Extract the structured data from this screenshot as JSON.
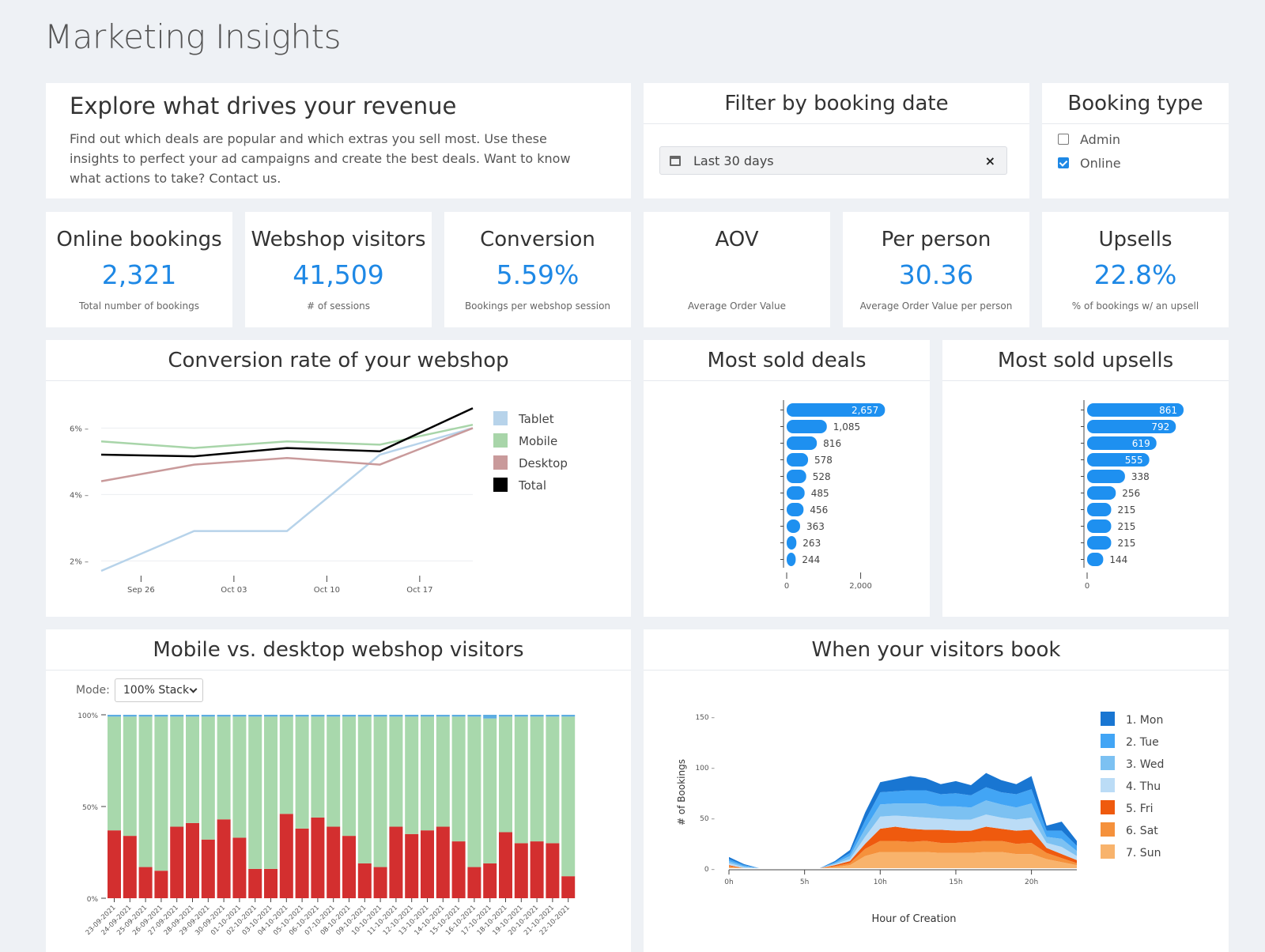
{
  "page": {
    "title": "Marketing Insights"
  },
  "intro": {
    "title": "Explore what drives your revenue",
    "text": "Find out which deals are popular and which extras you sell most. Use these insights to perfect your ad campaigns and create the best deals. Want to know what actions to take? Contact us."
  },
  "date_filter": {
    "title": "Filter by booking date",
    "value": "Last 30 days",
    "clear": "×"
  },
  "booking_type": {
    "title": "Booking type",
    "options": [
      {
        "label": "Admin",
        "checked": false
      },
      {
        "label": "Online",
        "checked": true
      }
    ]
  },
  "kpis": [
    {
      "title": "Online bookings",
      "value": "2,321",
      "sub": "Total number of bookings"
    },
    {
      "title": "Webshop visitors",
      "value": "41,509",
      "sub": "# of sessions"
    },
    {
      "title": "Conversion",
      "value": "5.59%",
      "sub": "Bookings per webshop session"
    },
    {
      "title": "AOV",
      "value": "",
      "sub": "Average Order Value"
    },
    {
      "title": "Per person",
      "value": "30.36",
      "sub": "Average Order Value per person"
    },
    {
      "title": "Upsells",
      "value": "22.8%",
      "sub": "% of bookings w/ an upsell"
    }
  ],
  "colors": {
    "accent": "#1e88e5",
    "tablet": "#b7d3ea",
    "mobile": "#a8d5a9",
    "desktop": "#c99a9b",
    "total": "#000000",
    "bar": "#1e90f0",
    "desktop_bar": "#d32f2f",
    "mobile_bar": "#a8d8ac",
    "tablet_bar": "#5dade2"
  },
  "chart_data": [
    {
      "type": "line",
      "title": "Conversion rate of your webshop",
      "x": [
        "2021-09-23",
        "2021-09-30",
        "2021-10-07",
        "2021-10-14",
        "2021-10-21"
      ],
      "x_ticks": [
        "Sep 26",
        "Oct 03",
        "Oct 10",
        "Oct 17"
      ],
      "y_ticks": [
        "2%",
        "4%",
        "6%"
      ],
      "ylim": [
        1.7,
        6.7
      ],
      "legend": "right",
      "series": [
        {
          "name": "Tablet",
          "values": [
            1.7,
            2.9,
            2.9,
            5.2,
            6.0
          ]
        },
        {
          "name": "Mobile",
          "values": [
            5.6,
            5.4,
            5.6,
            5.5,
            6.1
          ]
        },
        {
          "name": "Desktop",
          "values": [
            4.4,
            4.9,
            5.1,
            4.9,
            6.0
          ]
        },
        {
          "name": "Total",
          "values": [
            5.2,
            5.15,
            5.4,
            5.3,
            6.6
          ]
        }
      ]
    },
    {
      "type": "bar",
      "title": "Most sold deals",
      "orientation": "horizontal",
      "values": [
        2657,
        1085,
        816,
        578,
        528,
        485,
        456,
        363,
        263,
        244
      ],
      "labels": [
        "2,657",
        "1,085",
        "816",
        "578",
        "528",
        "485",
        "456",
        "363",
        "263",
        "244"
      ],
      "x_ticks": [
        "0",
        "2,000"
      ],
      "xlim": [
        0,
        2650
      ]
    },
    {
      "type": "bar",
      "title": "Most sold upsells",
      "orientation": "horizontal",
      "values": [
        861,
        792,
        619,
        555,
        338,
        256,
        215,
        215,
        215,
        144
      ],
      "labels": [
        "861",
        "792",
        "619",
        "555",
        "338",
        "256",
        "215",
        "215",
        "215",
        "144"
      ],
      "x_ticks": [
        "0"
      ],
      "xlim": [
        0,
        861
      ]
    },
    {
      "type": "bar",
      "title": "Mobile vs. desktop webshop visitors",
      "stacking": "100% stacked",
      "mode_label": "Mode:",
      "mode_value": "100% Stack",
      "y_ticks": [
        "100%",
        "50%",
        "0%"
      ],
      "categories": [
        "23-09-2021",
        "24-09-2021",
        "25-09-2021",
        "26-09-2021",
        "27-09-2021",
        "28-09-2021",
        "29-09-2021",
        "30-09-2021",
        "01-10-2021",
        "02-10-2021",
        "03-10-2021",
        "04-10-2021",
        "05-10-2021",
        "06-10-2021",
        "07-10-2021",
        "08-10-2021",
        "09-10-2021",
        "10-10-2021",
        "11-10-2021",
        "12-10-2021",
        "13-10-2021",
        "14-10-2021",
        "15-10-2021",
        "16-10-2021",
        "17-10-2021",
        "18-10-2021",
        "19-10-2021",
        "20-10-2021",
        "21-10-2021",
        "22-10-2021"
      ],
      "series": [
        {
          "name": "Desktop",
          "values": [
            37,
            34,
            17,
            15,
            39,
            41,
            32,
            43,
            33,
            16,
            16,
            46,
            38,
            44,
            39,
            34,
            19,
            17,
            39,
            35,
            37,
            39,
            31,
            17,
            19,
            36,
            30,
            31,
            30,
            12
          ]
        },
        {
          "name": "Mobile",
          "values": [
            62,
            65,
            82,
            84,
            60,
            58,
            67,
            56,
            66,
            83,
            83,
            53,
            61,
            55,
            60,
            65,
            80,
            82,
            60,
            64,
            62,
            60,
            68,
            82,
            79,
            63,
            69,
            68,
            69,
            87
          ]
        },
        {
          "name": "Tablet",
          "values": [
            1,
            1,
            1,
            1,
            1,
            1,
            1,
            1,
            1,
            1,
            1,
            1,
            1,
            1,
            1,
            1,
            1,
            1,
            1,
            1,
            1,
            1,
            1,
            1,
            2,
            1,
            1,
            1,
            1,
            1
          ]
        }
      ]
    },
    {
      "type": "area",
      "title": "When your visitors book",
      "stacked": true,
      "xlabel": "Hour of Creation",
      "ylabel": "# of Bookings",
      "x_ticks": [
        "0h",
        "5h",
        "10h",
        "15h",
        "20h"
      ],
      "y_ticks": [
        "0",
        "50",
        "100",
        "150"
      ],
      "ylim": [
        0,
        150
      ],
      "legend": "right",
      "x": [
        0,
        1,
        2,
        3,
        4,
        5,
        6,
        7,
        8,
        9,
        10,
        11,
        12,
        13,
        14,
        15,
        16,
        17,
        18,
        19,
        20,
        21,
        22,
        23
      ],
      "series": [
        {
          "name": "1. Mon",
          "color": "#1976d2",
          "values": [
            2,
            1,
            0,
            0,
            0,
            0,
            0,
            1,
            3,
            8,
            10,
            12,
            14,
            12,
            10,
            12,
            10,
            14,
            12,
            10,
            13,
            5,
            9,
            5
          ]
        },
        {
          "name": "2. Tue",
          "color": "#42a5f5",
          "values": [
            2,
            1,
            0,
            0,
            0,
            0,
            0,
            1,
            3,
            8,
            12,
            12,
            13,
            13,
            12,
            13,
            12,
            13,
            12,
            13,
            14,
            6,
            8,
            5
          ]
        },
        {
          "name": "3. Wed",
          "color": "#7cc1f2",
          "values": [
            2,
            1,
            0,
            0,
            0,
            0,
            0,
            1,
            3,
            8,
            12,
            12,
            13,
            14,
            12,
            13,
            12,
            14,
            13,
            12,
            14,
            6,
            8,
            5
          ]
        },
        {
          "name": "4. Thu",
          "color": "#bbdcf6",
          "values": [
            2,
            1,
            0,
            0,
            0,
            0,
            0,
            1,
            2,
            7,
            12,
            11,
            12,
            12,
            11,
            11,
            11,
            12,
            11,
            11,
            12,
            5,
            7,
            4
          ]
        },
        {
          "name": "5. Fri",
          "color": "#ef5a0e",
          "values": [
            1,
            0,
            0,
            0,
            0,
            0,
            0,
            1,
            2,
            5,
            12,
            14,
            13,
            11,
            13,
            12,
            11,
            14,
            12,
            13,
            13,
            5,
            4,
            3
          ]
        },
        {
          "name": "6. Sat",
          "color": "#f5913c",
          "values": [
            1,
            0,
            0,
            0,
            0,
            0,
            0,
            1,
            2,
            7,
            11,
            11,
            10,
            11,
            10,
            10,
            11,
            11,
            11,
            10,
            11,
            6,
            4,
            2
          ]
        },
        {
          "name": "7. Sun",
          "color": "#f8b36c",
          "values": [
            1,
            0,
            0,
            0,
            0,
            0,
            0,
            1,
            3,
            12,
            16,
            16,
            16,
            16,
            15,
            15,
            15,
            16,
            16,
            14,
            14,
            9,
            6,
            3
          ]
        }
      ]
    }
  ]
}
